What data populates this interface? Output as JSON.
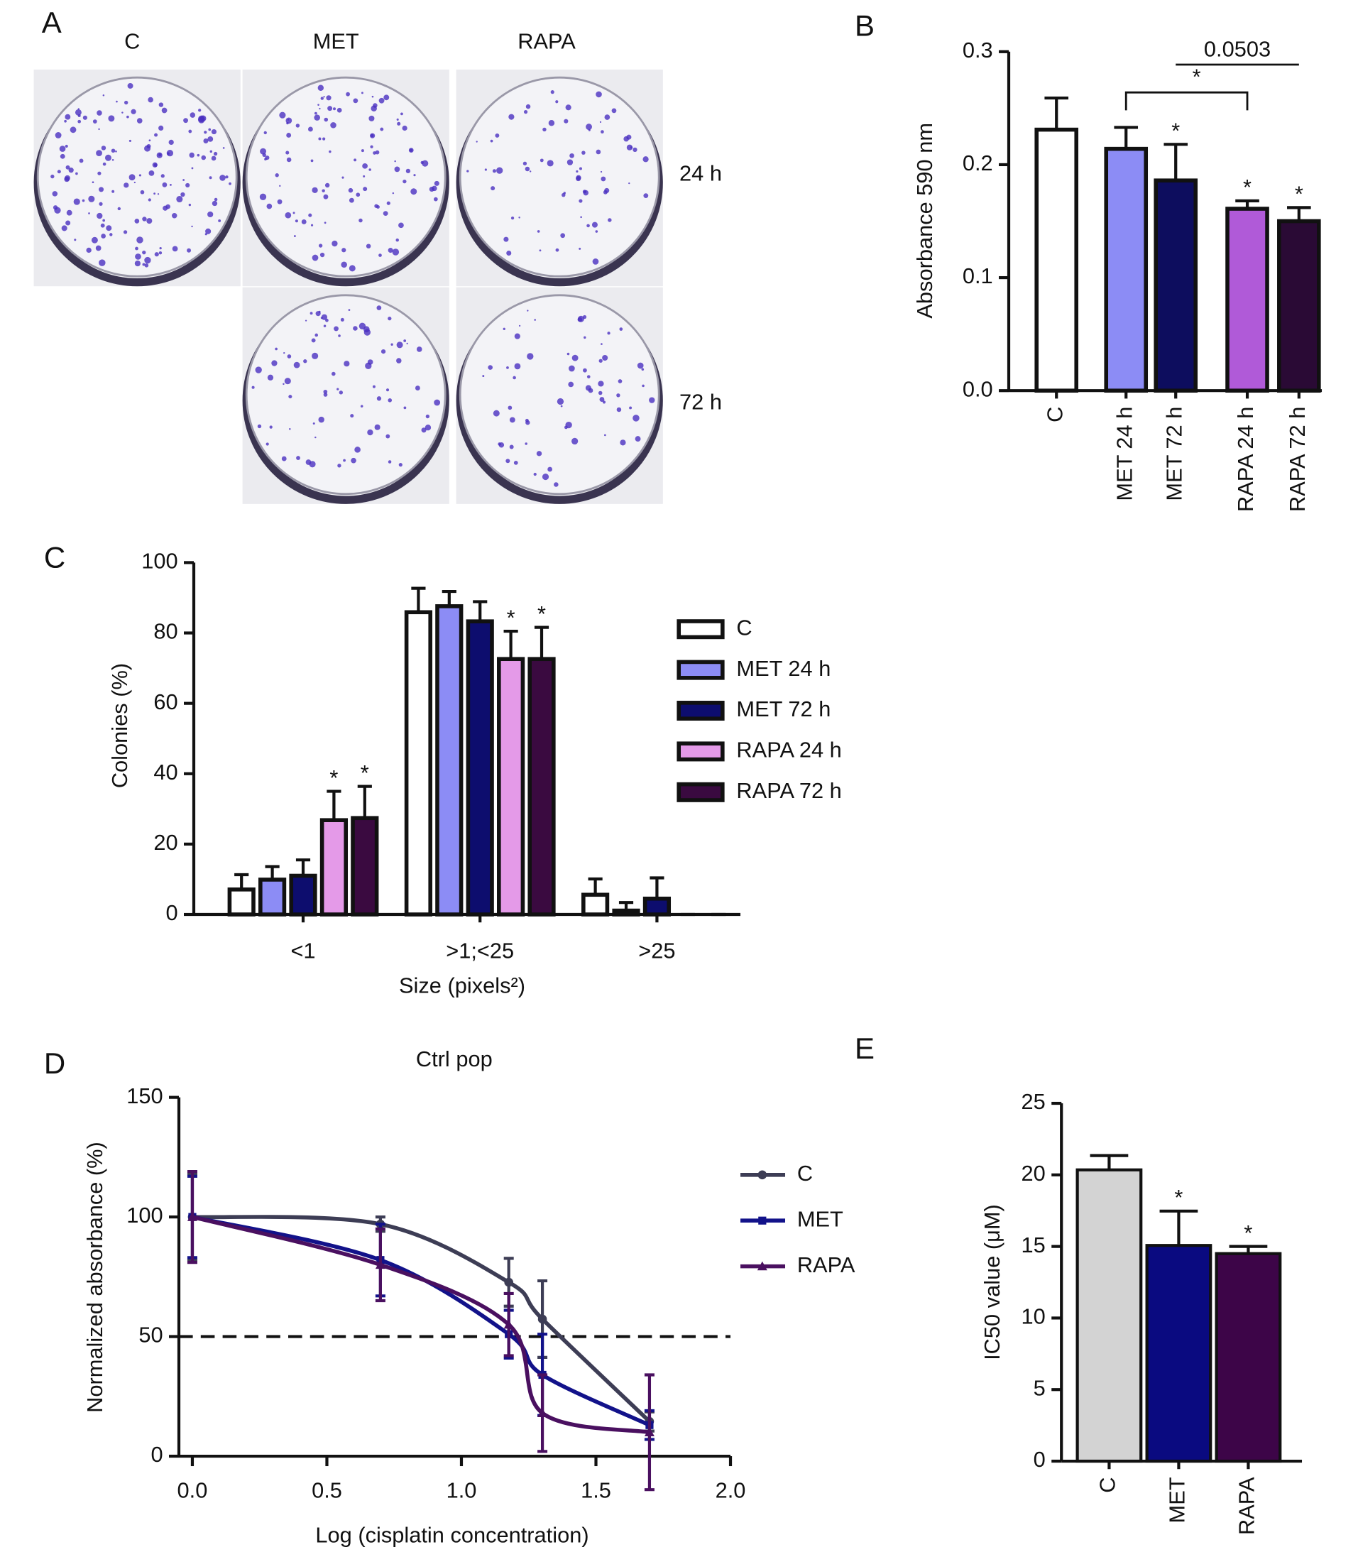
{
  "panel_a": {
    "label": "A",
    "columns": [
      "C",
      "MET",
      "RAPA"
    ],
    "rows": [
      "24 h",
      "72 h"
    ]
  },
  "chart_data": [
    {
      "type": "bar",
      "panel_label": "B",
      "y_label": "Absorbance 590 nm",
      "categories": [
        "C",
        "MET 24 h",
        "MET 72 h",
        "RAPA 24 h",
        "RAPA  72 h"
      ],
      "values": [
        0.231,
        0.214,
        0.186,
        0.161,
        0.15
      ],
      "errors": [
        0.028,
        0.019,
        0.032,
        0.007,
        0.012
      ],
      "colors": [
        "#ffffff",
        "#8c8cf5",
        "#0d0d5e",
        "#b05ad8",
        "#2a0a35"
      ],
      "significance": [
        null,
        null,
        "*",
        "*",
        "*"
      ],
      "comparisons": [
        {
          "label": "*",
          "from": 1,
          "to": 3
        },
        {
          "label": "0.0503",
          "from": 2,
          "to": 4
        }
      ],
      "ylim": [
        0,
        0.3
      ],
      "yticks": [
        {
          "value": 0,
          "label": "0.0"
        },
        0.1,
        0.2,
        0.3
      ]
    },
    {
      "type": "bar",
      "panel_label": "C",
      "y_label": "Colonies (%)",
      "x_label": "Size  (pixels²)",
      "categories": [
        "<1",
        ">1;<25",
        ">25"
      ],
      "series": [
        {
          "name": "C",
          "color": "#ffffff",
          "values": [
            7.1,
            85.9,
            5.6
          ],
          "errors": [
            4.2,
            6.8,
            4.5
          ],
          "significance": [
            null,
            null,
            null
          ]
        },
        {
          "name": "MET 24 h",
          "color": "#8c8cf5",
          "values": [
            9.9,
            87.6,
            1.1
          ],
          "errors": [
            3.7,
            4.2,
            2.3
          ],
          "significance": [
            null,
            null,
            null
          ]
        },
        {
          "name": "MET 72 h",
          "color": "#0d0d6e",
          "values": [
            11.0,
            83.3,
            4.5
          ],
          "errors": [
            4.5,
            5.6,
            5.9
          ],
          "significance": [
            null,
            null,
            null
          ]
        },
        {
          "name": "RAPA 24 h",
          "color": "#e49ae8",
          "values": [
            26.8,
            72.6,
            0
          ],
          "errors": [
            8.2,
            7.9,
            0
          ],
          "significance": [
            "*",
            "*",
            null
          ]
        },
        {
          "name": "RAPA 72 h",
          "color": "#3a0a40",
          "values": [
            27.4,
            72.6,
            0
          ],
          "errors": [
            9.0,
            9.0,
            0
          ],
          "significance": [
            "*",
            "*",
            null
          ]
        }
      ],
      "ylim": [
        0,
        100
      ],
      "yticks": [
        0,
        20,
        40,
        60,
        80,
        100
      ]
    },
    {
      "type": "line",
      "panel_label": "D",
      "title": "Ctrl pop",
      "x_label": "Log (cisplatin concentration)",
      "y_label": "Normalized absorbance (%)",
      "x": [
        0,
        0.699,
        1.176,
        1.301,
        1.699
      ],
      "series": [
        {
          "name": "C",
          "color": "#3d3d55",
          "marker": "circle",
          "values": [
            100,
            97,
            72.7,
            57.3,
            14.5
          ],
          "errors": [
            18,
            3,
            10,
            16,
            4
          ]
        },
        {
          "name": "MET",
          "color": "#12128a",
          "marker": "square",
          "values": [
            100,
            82,
            51,
            34,
            13
          ],
          "errors": [
            17,
            15,
            10,
            17,
            6
          ]
        },
        {
          "name": "RAPA",
          "color": "#4a1060",
          "marker": "triangle",
          "values": [
            100,
            80,
            55,
            18,
            10
          ],
          "errors": [
            19,
            15,
            13,
            16,
            24
          ]
        }
      ],
      "reference_line": 50,
      "xlim": [
        -0.05,
        2.0
      ],
      "xticks": [
        {
          "value": 0,
          "label": "0.0"
        },
        0.5,
        {
          "value": 1,
          "label": "1.0"
        },
        1.5,
        {
          "value": 2,
          "label": "2.0"
        }
      ],
      "ylim": [
        0,
        150
      ],
      "yticks": [
        0,
        50,
        100,
        150
      ]
    },
    {
      "type": "bar",
      "panel_label": "E",
      "y_label": "IC50 value (μM)",
      "categories": [
        "C",
        "MET",
        "RAPA"
      ],
      "values": [
        20.35,
        15.07,
        14.5
      ],
      "errors": [
        1.0,
        2.4,
        0.5
      ],
      "colors": [
        "#d3d3d3",
        "#0a0a80",
        "#3d0548"
      ],
      "significance": [
        null,
        "*",
        "*"
      ],
      "ylim": [
        0,
        25
      ],
      "yticks": [
        0,
        5,
        10,
        15,
        20,
        25
      ]
    }
  ]
}
